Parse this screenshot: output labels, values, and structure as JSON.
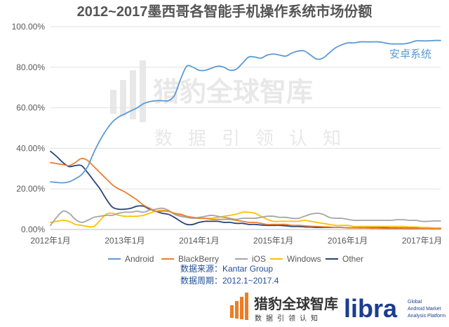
{
  "chart_data": {
    "type": "line",
    "title": "2012~2017墨西哥各智能手机操作系统市场份额",
    "ylim": [
      0,
      100
    ],
    "y_ticks": [
      "0.00%",
      "20.00%",
      "40.00%",
      "60.00%",
      "80.00%",
      "100.00%"
    ],
    "x_ticks": [
      "2012年1月",
      "2013年1月",
      "2014年1月",
      "2015年1月",
      "2016年1月",
      "2017年1月"
    ],
    "x_start": "2012-01",
    "x_end": "2017-04",
    "grid": "horizontal",
    "legend_position": "bottom",
    "annotation": "安卓系统",
    "series": [
      {
        "name": "Android",
        "color": "#5b9bd5",
        "values": [
          23.5,
          23.2,
          23,
          23.5,
          25,
          27,
          31,
          38,
          44,
          49,
          53,
          55.5,
          57,
          58.5,
          60,
          62,
          63,
          63.5,
          63.5,
          63.5,
          66,
          74,
          80.5,
          80,
          78.5,
          78.5,
          79.5,
          80.5,
          80,
          78.5,
          79,
          82,
          85,
          85,
          84.5,
          86,
          86.5,
          86,
          85.5,
          87,
          88,
          88,
          86,
          84,
          84.5,
          87,
          89.5,
          91,
          92,
          92,
          92.5,
          92.5,
          92.5,
          92.5,
          92,
          91.5,
          91.5,
          91.5,
          92,
          93,
          93,
          93,
          93.2,
          93.2
        ]
      },
      {
        "name": "BlackBerry",
        "color": "#ed7d31",
        "values": [
          33,
          32.5,
          32,
          31.5,
          33,
          35,
          34,
          31,
          28,
          25,
          22,
          20,
          18.5,
          16.5,
          14.5,
          12,
          10.5,
          9,
          9,
          9,
          8,
          7.5,
          6.5,
          6,
          5.5,
          5.5,
          5,
          5,
          5,
          5,
          4.5,
          4,
          3.5,
          3.5,
          3,
          2.5,
          2.5,
          2.5,
          2.5,
          2,
          2,
          1.8,
          1.6,
          1.5,
          1.3,
          1.2,
          1,
          1,
          0.8,
          0.8,
          0.7,
          0.7,
          0.6,
          0.6,
          0.5,
          0.5,
          0.5,
          0.5,
          0.4,
          0.4,
          0.4,
          0.4,
          0.3,
          0.3
        ]
      },
      {
        "name": "iOS",
        "color": "#a5a5a5",
        "values": [
          2,
          6,
          9,
          8,
          5,
          3.5,
          4.5,
          6,
          6.5,
          7,
          7,
          8,
          8.5,
          8.5,
          9,
          8.5,
          9.5,
          10,
          10.5,
          9.5,
          7.5,
          6.5,
          6,
          5.5,
          6,
          6.5,
          7,
          6.5,
          6,
          5.5,
          5,
          5.5,
          5.5,
          5.5,
          6,
          6.5,
          6.5,
          6,
          6,
          5.5,
          5.5,
          6.5,
          7.5,
          8,
          7.5,
          6,
          5.5,
          5.5,
          5,
          4.5,
          4.5,
          4.5,
          4.5,
          4.5,
          4.5,
          4.5,
          4.8,
          4.8,
          4.5,
          4.5,
          4,
          4,
          4.2,
          4.2
        ]
      },
      {
        "name": "Windows",
        "color": "#ffc000",
        "values": [
          3.5,
          4,
          4.5,
          4,
          2.5,
          2,
          1.5,
          1.5,
          4.5,
          7.5,
          8,
          7,
          6.5,
          6.5,
          6.5,
          7,
          8,
          9,
          9.5,
          9,
          8,
          7,
          6,
          5.5,
          5.5,
          5.5,
          5.5,
          6,
          6.5,
          7,
          7.5,
          8.5,
          8.5,
          8,
          6.5,
          5,
          4,
          4,
          4,
          4,
          4,
          4.5,
          4,
          3.5,
          3,
          2.5,
          2,
          2,
          2,
          1.5,
          1.5,
          1.5,
          1.5,
          1.5,
          1.5,
          1.5,
          1.5,
          1.5,
          1.2,
          1.2,
          1,
          1,
          0.8,
          0.8
        ]
      },
      {
        "name": "Other",
        "color": "#264478",
        "values": [
          38.5,
          36,
          33,
          31,
          31.5,
          31.5,
          28,
          24,
          20,
          15,
          11,
          10,
          10,
          10.5,
          11.5,
          11.5,
          10,
          9,
          8,
          7.5,
          6,
          4,
          2.5,
          2.5,
          3.5,
          4,
          4,
          4,
          3.5,
          3.5,
          3,
          3,
          2.5,
          2.5,
          2.2,
          2,
          2,
          2,
          1.8,
          1.5,
          1.5,
          1.3,
          1.2,
          1,
          1,
          1,
          1,
          1,
          0.8,
          0.8,
          0.8,
          0.8,
          0.8,
          0.8,
          0.8,
          0.7,
          0.7,
          0.7,
          0.6,
          0.6,
          0.6,
          0.6,
          0.5,
          0.5
        ]
      }
    ]
  },
  "notes": {
    "source": "数据来源：Kantar Group",
    "period": "数据周期：2012.1~2017.4"
  },
  "watermark": {
    "main": "猎豹全球智库",
    "sub": "数据引领认知"
  },
  "branding": {
    "name_zh": "猎豹全球智库",
    "tagline_zh": "数据引领认知",
    "libra": "libra",
    "libra_line1": "Global",
    "libra_line2": "Android Market",
    "libra_line3": "Analysis Platform"
  },
  "colors": {
    "brand_orange": "#f07c22",
    "brand_navy": "#1a3d8f"
  }
}
